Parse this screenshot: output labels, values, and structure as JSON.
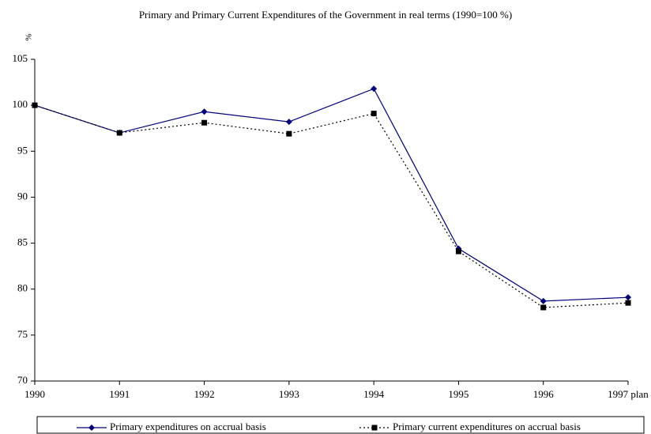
{
  "chart_data": {
    "type": "line",
    "title": "Primary and Primary Current Expenditures of the Government in real terms (1990=100 %)",
    "y_label": "%",
    "categories": [
      "1990",
      "1991",
      "1992",
      "1993",
      "1994",
      "1995",
      "1996",
      "1997 plan"
    ],
    "series": [
      {
        "name": "Primary expenditures on accrual basis",
        "color": "#000080",
        "dash": "solid",
        "marker": "diamond",
        "values": [
          100,
          97.0,
          99.3,
          98.2,
          101.8,
          84.4,
          78.7,
          79.1
        ]
      },
      {
        "name": "Primary current expenditures on accrual basis",
        "color": "#000000",
        "dash": "dotted",
        "marker": "square",
        "values": [
          100,
          97.0,
          98.1,
          96.9,
          99.1,
          84.1,
          78.0,
          78.5
        ]
      }
    ],
    "ylim": [
      70,
      105
    ],
    "yticks": [
      70,
      75,
      80,
      85,
      90,
      95,
      100,
      105
    ],
    "grid": false
  }
}
